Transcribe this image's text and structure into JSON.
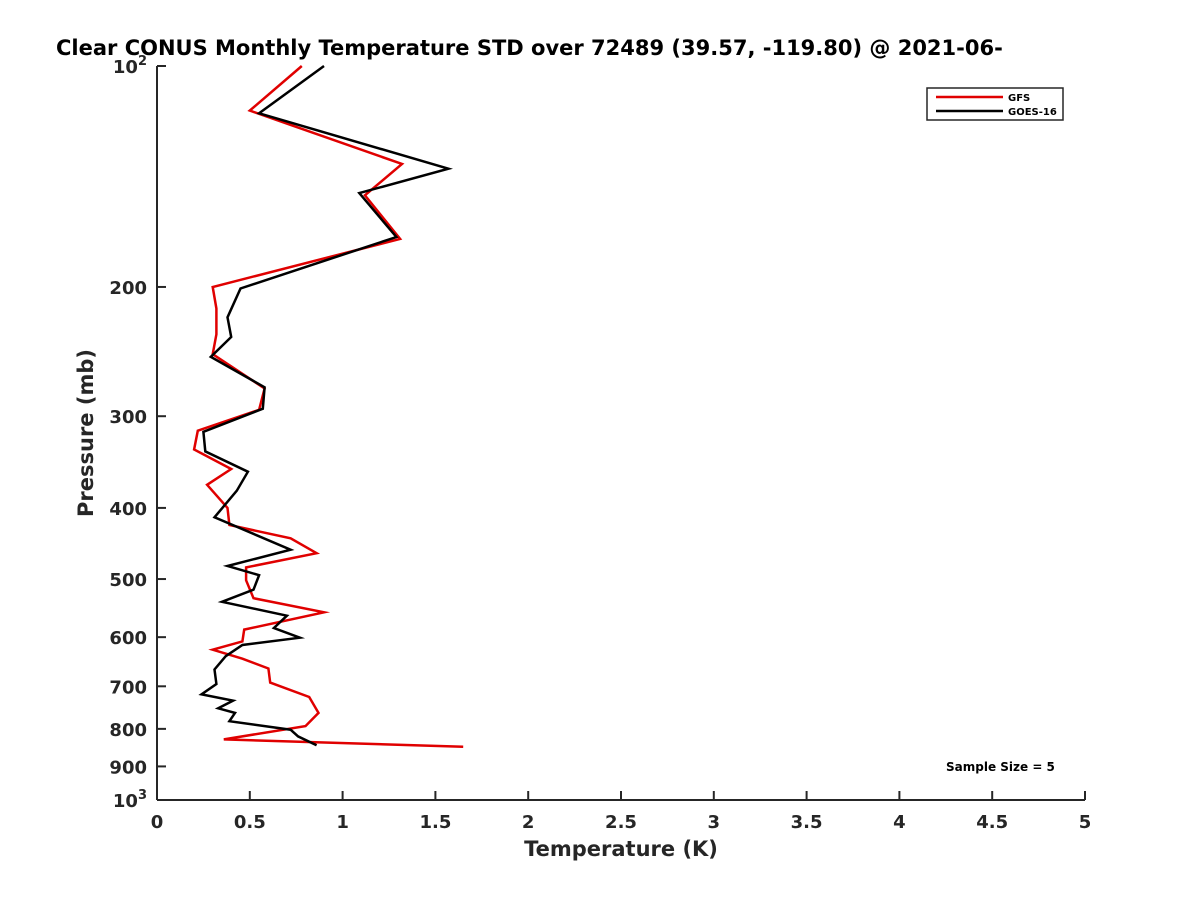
{
  "chart_data": {
    "type": "line",
    "title": "Clear CONUS Monthly Temperature STD over 72489 (39.57, -119.80) @ 2021-06-",
    "xlabel": "Temperature (K)",
    "ylabel": "Pressure (mb)",
    "xlim": [
      0,
      5
    ],
    "ylim": [
      100,
      1000
    ],
    "y_scale": "log",
    "y_reversed": true,
    "grid": false,
    "legend_position": "top-right",
    "x_ticks": [
      "0",
      "0.5",
      "1",
      "1.5",
      "2",
      "2.5",
      "3",
      "3.5",
      "4",
      "4.5",
      "5"
    ],
    "x_tick_values": [
      0,
      0.5,
      1,
      1.5,
      2,
      2.5,
      3,
      3.5,
      4,
      4.5,
      5
    ],
    "y_ticks": [
      {
        "value": 100,
        "label": "10",
        "sup": "2"
      },
      {
        "value": 200,
        "label": "200",
        "sup": ""
      },
      {
        "value": 300,
        "label": "300",
        "sup": ""
      },
      {
        "value": 400,
        "label": "400",
        "sup": ""
      },
      {
        "value": 500,
        "label": "500",
        "sup": ""
      },
      {
        "value": 600,
        "label": "600",
        "sup": ""
      },
      {
        "value": 700,
        "label": "700",
        "sup": ""
      },
      {
        "value": 800,
        "label": "800",
        "sup": ""
      },
      {
        "value": 900,
        "label": "900",
        "sup": ""
      },
      {
        "value": 1000,
        "label": "10",
        "sup": "3"
      }
    ],
    "annotation": "Sample Size = 5",
    "series": [
      {
        "name": "GFS",
        "color": "#e00000",
        "points": [
          [
            0.78,
            100
          ],
          [
            0.5,
            115
          ],
          [
            1.32,
            136
          ],
          [
            1.12,
            150
          ],
          [
            1.31,
            172
          ],
          [
            0.3,
            200
          ],
          [
            0.32,
            214
          ],
          [
            0.32,
            232
          ],
          [
            0.3,
            247
          ],
          [
            0.58,
            275
          ],
          [
            0.55,
            294
          ],
          [
            0.22,
            314
          ],
          [
            0.2,
            333
          ],
          [
            0.4,
            354
          ],
          [
            0.27,
            372
          ],
          [
            0.38,
            400
          ],
          [
            0.39,
            422
          ],
          [
            0.72,
            440
          ],
          [
            0.86,
            461
          ],
          [
            0.48,
            482
          ],
          [
            0.48,
            502
          ],
          [
            0.52,
            531
          ],
          [
            0.9,
            555
          ],
          [
            0.47,
            586
          ],
          [
            0.46,
            608
          ],
          [
            0.3,
            624
          ],
          [
            0.46,
            642
          ],
          [
            0.6,
            662
          ],
          [
            0.61,
            692
          ],
          [
            0.82,
            724
          ],
          [
            0.87,
            761
          ],
          [
            0.8,
            793
          ],
          [
            0.36,
            827
          ],
          [
            1.65,
            846
          ]
        ]
      },
      {
        "name": "GOES-16",
        "color": "#000000",
        "points": [
          [
            0.9,
            100
          ],
          [
            0.55,
            116
          ],
          [
            1.57,
            138
          ],
          [
            1.09,
            149
          ],
          [
            1.29,
            171
          ],
          [
            0.45,
            201
          ],
          [
            0.38,
            220
          ],
          [
            0.4,
            234
          ],
          [
            0.29,
            249
          ],
          [
            0.58,
            274
          ],
          [
            0.57,
            293
          ],
          [
            0.25,
            315
          ],
          [
            0.26,
            335
          ],
          [
            0.49,
            357
          ],
          [
            0.43,
            379
          ],
          [
            0.31,
            412
          ],
          [
            0.72,
            456
          ],
          [
            0.38,
            480
          ],
          [
            0.55,
            494
          ],
          [
            0.52,
            517
          ],
          [
            0.35,
            537
          ],
          [
            0.7,
            561
          ],
          [
            0.63,
            583
          ],
          [
            0.77,
            601
          ],
          [
            0.46,
            615
          ],
          [
            0.37,
            637
          ],
          [
            0.31,
            664
          ],
          [
            0.32,
            695
          ],
          [
            0.24,
            718
          ],
          [
            0.41,
            732
          ],
          [
            0.33,
            750
          ],
          [
            0.42,
            761
          ],
          [
            0.39,
            781
          ],
          [
            0.72,
            802
          ],
          [
            0.76,
            819
          ],
          [
            0.86,
            842
          ]
        ]
      }
    ]
  }
}
